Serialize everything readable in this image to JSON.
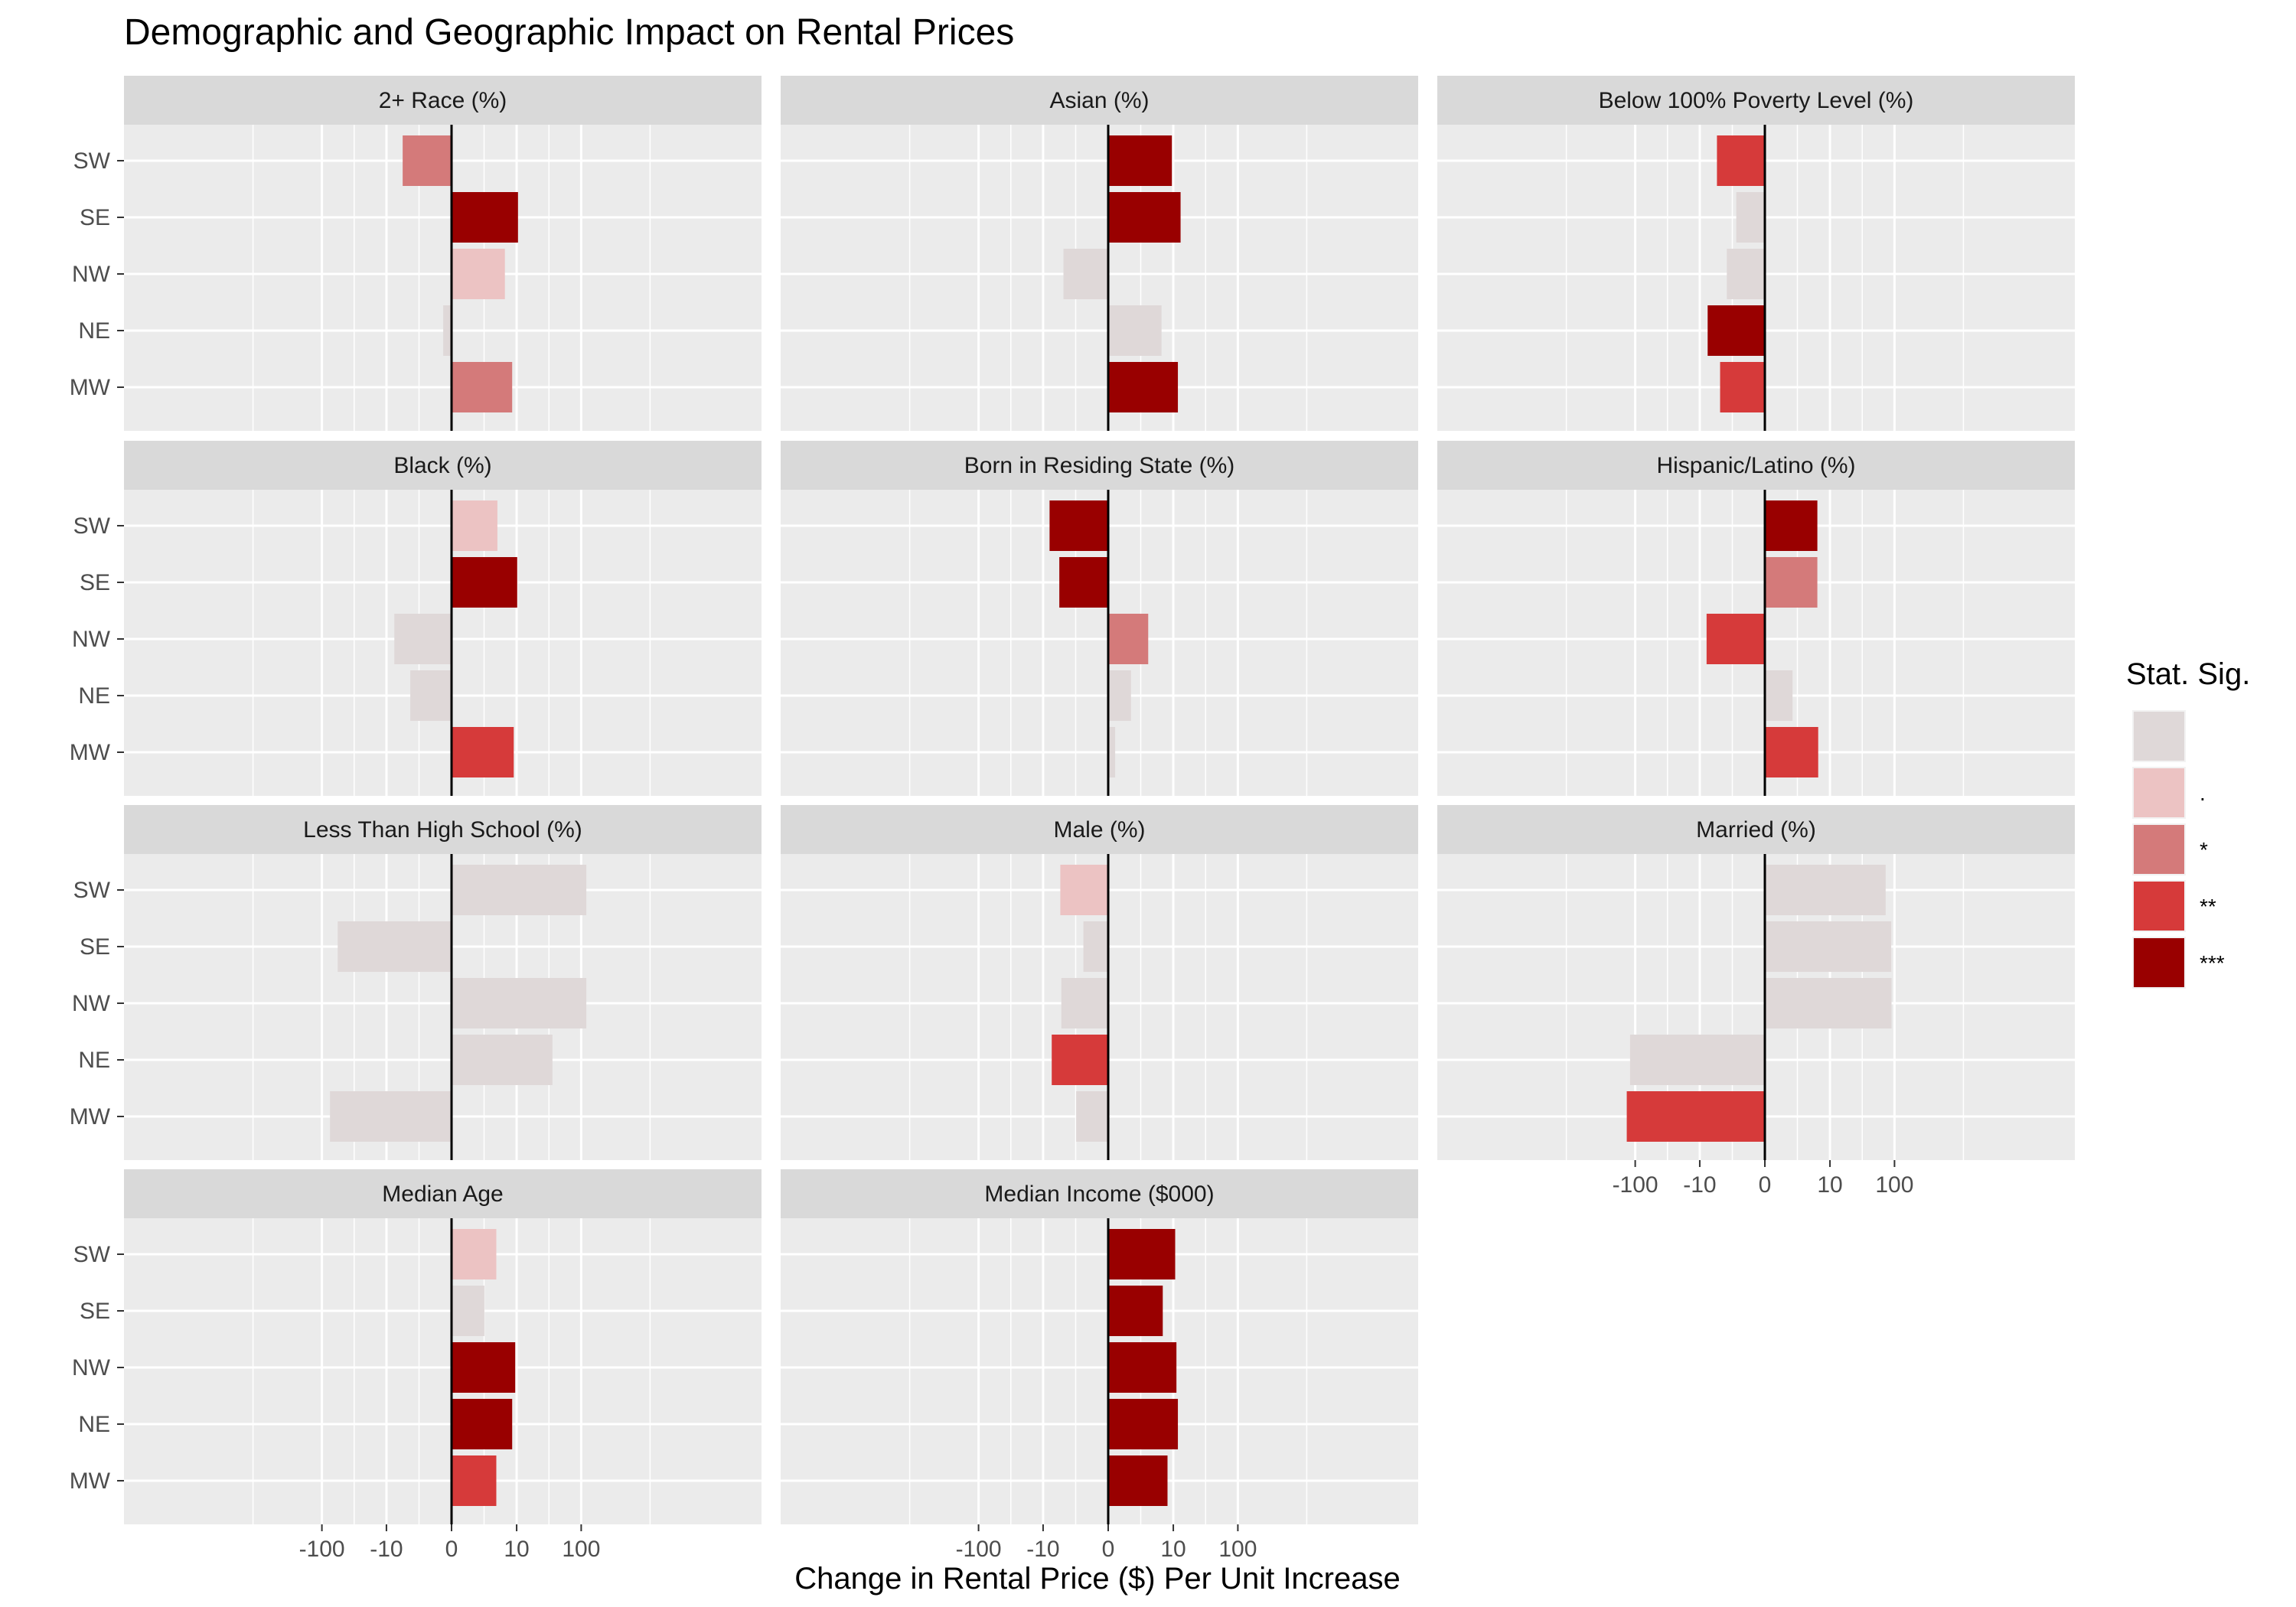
{
  "chart_data": {
    "type": "bar",
    "orientation": "horizontal",
    "title": "Demographic and Geographic Impact on Rental Prices",
    "xlabel": "Change in Rental Price ($) Per Unit Increase",
    "ylabel": "",
    "x_scale": "pseudo-log (signed)",
    "x_ticks": [
      -100,
      -10,
      0,
      10,
      100
    ],
    "x_tick_labels": [
      "-100",
      "-10",
      "0",
      "10",
      "100"
    ],
    "xlim": [
      -200,
      200
    ],
    "categories": [
      "SW",
      "SE",
      "NW",
      "NE",
      "MW"
    ],
    "grid": true,
    "legend": {
      "title": "Stat. Sig.",
      "placement": "right",
      "levels": [
        {
          "label": "",
          "color": "#dfd8d8"
        },
        {
          "label": ".",
          "color": "#ecc3c3"
        },
        {
          "label": "*",
          "color": "#d47a7a"
        },
        {
          "label": "**",
          "color": "#d63a3a"
        },
        {
          "label": "***",
          "color": "#990000"
        }
      ]
    },
    "panels": [
      {
        "name": "2+ Race (%)",
        "bars": [
          {
            "region": "SW",
            "value": -5.5,
            "sig": "*"
          },
          {
            "region": "SE",
            "value": 10.5,
            "sig": "***"
          },
          {
            "region": "NW",
            "value": 6.5,
            "sig": "."
          },
          {
            "region": "NE",
            "value": -0.6,
            "sig": ""
          },
          {
            "region": "MW",
            "value": 8.5,
            "sig": "*"
          }
        ]
      },
      {
        "name": "Asian (%)",
        "bars": [
          {
            "region": "SW",
            "value": 9.5,
            "sig": "***"
          },
          {
            "region": "SE",
            "value": 13,
            "sig": "***"
          },
          {
            "region": "NW",
            "value": -4.7,
            "sig": ""
          },
          {
            "region": "NE",
            "value": 6.5,
            "sig": ""
          },
          {
            "region": "MW",
            "value": 11.8,
            "sig": "***"
          }
        ]
      },
      {
        "name": "Below 100% Poverty Level (%)",
        "bars": [
          {
            "region": "SW",
            "value": -5.3,
            "sig": "**"
          },
          {
            "region": "SE",
            "value": -2.4,
            "sig": ""
          },
          {
            "region": "NW",
            "value": -3.6,
            "sig": ""
          },
          {
            "region": "NE",
            "value": -7.5,
            "sig": "***"
          },
          {
            "region": "MW",
            "value": -4.7,
            "sig": "**"
          }
        ]
      },
      {
        "name": "Black (%)",
        "bars": [
          {
            "region": "SW",
            "value": 4.9,
            "sig": "."
          },
          {
            "region": "SE",
            "value": 10.2,
            "sig": "***"
          },
          {
            "region": "NW",
            "value": -7.5,
            "sig": ""
          },
          {
            "region": "NE",
            "value": -4.1,
            "sig": ""
          },
          {
            "region": "MW",
            "value": 9,
            "sig": "**"
          }
        ]
      },
      {
        "name": "Born in Residing State (%)",
        "bars": [
          {
            "region": "SW",
            "value": -7.9,
            "sig": "***"
          },
          {
            "region": "SE",
            "value": -5.5,
            "sig": "***"
          },
          {
            "region": "NW",
            "value": 3.9,
            "sig": "*"
          },
          {
            "region": "NE",
            "value": 1.8,
            "sig": ""
          },
          {
            "region": "MW",
            "value": 0.5,
            "sig": ""
          }
        ]
      },
      {
        "name": "Hispanic/Latino (%)",
        "bars": [
          {
            "region": "SW",
            "value": 6.3,
            "sig": "***"
          },
          {
            "region": "SE",
            "value": 6.3,
            "sig": "*"
          },
          {
            "region": "NW",
            "value": -7.8,
            "sig": "**"
          },
          {
            "region": "NE",
            "value": 2.3,
            "sig": ""
          },
          {
            "region": "MW",
            "value": 6.5,
            "sig": "**"
          }
        ]
      },
      {
        "name": "Less Than High School (%)",
        "bars": [
          {
            "region": "SW",
            "value": 120,
            "sig": ""
          },
          {
            "region": "SE",
            "value": -57,
            "sig": ""
          },
          {
            "region": "NW",
            "value": 120,
            "sig": ""
          },
          {
            "region": "NE",
            "value": 36,
            "sig": ""
          },
          {
            "region": "MW",
            "value": -75,
            "sig": ""
          }
        ]
      },
      {
        "name": "Male (%)",
        "bars": [
          {
            "region": "SW",
            "value": -5.3,
            "sig": "."
          },
          {
            "region": "SE",
            "value": -2.0,
            "sig": ""
          },
          {
            "region": "NW",
            "value": -5.1,
            "sig": ""
          },
          {
            "region": "NE",
            "value": -7.3,
            "sig": "**"
          },
          {
            "region": "MW",
            "value": -2.8,
            "sig": ""
          }
        ]
      },
      {
        "name": "Married (%)",
        "bars": [
          {
            "region": "SW",
            "value": 73,
            "sig": ""
          },
          {
            "region": "SE",
            "value": 89,
            "sig": ""
          },
          {
            "region": "NW",
            "value": 90,
            "sig": ""
          },
          {
            "region": "NE",
            "value": -120,
            "sig": ""
          },
          {
            "region": "MW",
            "value": -135,
            "sig": "**"
          }
        ]
      },
      {
        "name": "Median Age",
        "bars": [
          {
            "region": "SW",
            "value": 4.7,
            "sig": "."
          },
          {
            "region": "SE",
            "value": 2.9,
            "sig": ""
          },
          {
            "region": "NW",
            "value": 9.5,
            "sig": "***"
          },
          {
            "region": "NE",
            "value": 8.5,
            "sig": "***"
          },
          {
            "region": "MW",
            "value": 4.7,
            "sig": "**"
          }
        ]
      },
      {
        "name": "Median Income ($000)",
        "bars": [
          {
            "region": "SW",
            "value": 10.7,
            "sig": "***"
          },
          {
            "region": "SE",
            "value": 6.8,
            "sig": "***"
          },
          {
            "region": "NW",
            "value": 11.2,
            "sig": "***"
          },
          {
            "region": "NE",
            "value": 11.8,
            "sig": "***"
          },
          {
            "region": "MW",
            "value": 8.1,
            "sig": "***"
          }
        ]
      }
    ]
  }
}
